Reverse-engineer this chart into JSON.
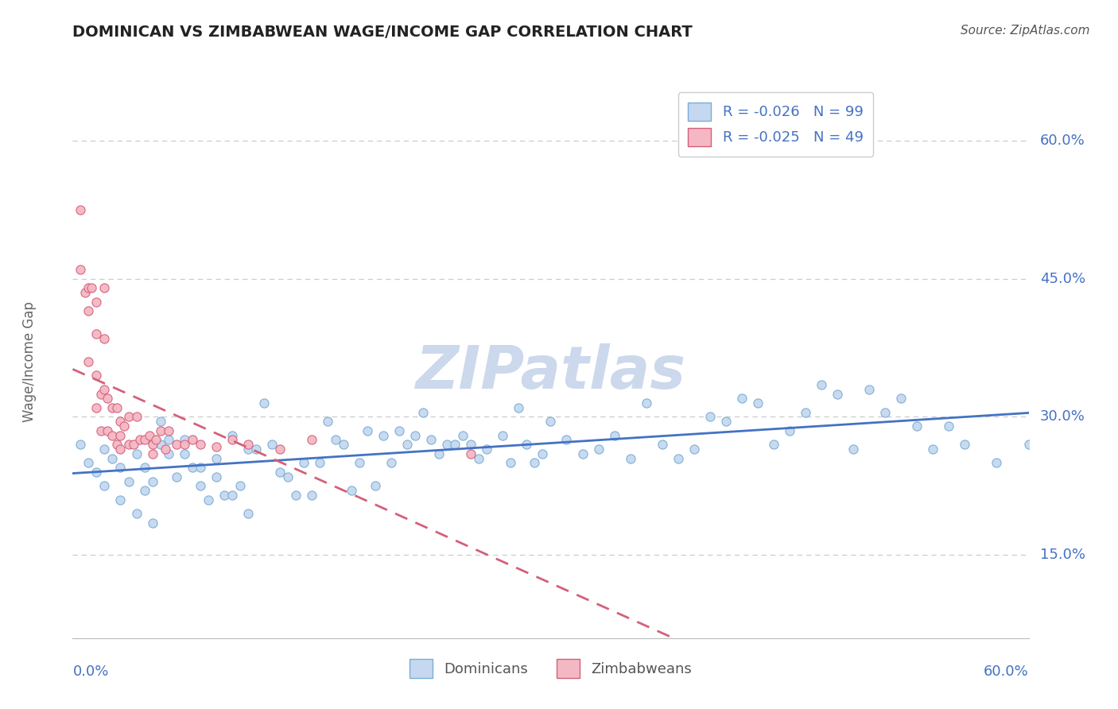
{
  "title": "DOMINICAN VS ZIMBABWEAN WAGE/INCOME GAP CORRELATION CHART",
  "source": "Source: ZipAtlas.com",
  "ylabel": "Wage/Income Gap",
  "yticks": [
    0.15,
    0.3,
    0.45,
    0.6
  ],
  "ytick_labels": [
    "15.0%",
    "30.0%",
    "45.0%",
    "60.0%"
  ],
  "xlim": [
    0.0,
    0.6
  ],
  "ylim": [
    0.06,
    0.66
  ],
  "series": [
    {
      "name": "Dominicans",
      "R": -0.026,
      "N": 99,
      "color": "#c5d8f0",
      "edge_color": "#7aadd4",
      "line_color": "#4472c4",
      "line_style": "solid",
      "x": [
        0.005,
        0.01,
        0.015,
        0.02,
        0.02,
        0.025,
        0.03,
        0.03,
        0.035,
        0.04,
        0.04,
        0.045,
        0.045,
        0.05,
        0.05,
        0.055,
        0.055,
        0.06,
        0.06,
        0.065,
        0.07,
        0.07,
        0.075,
        0.08,
        0.08,
        0.085,
        0.09,
        0.09,
        0.095,
        0.1,
        0.1,
        0.105,
        0.11,
        0.11,
        0.115,
        0.12,
        0.125,
        0.13,
        0.135,
        0.14,
        0.145,
        0.15,
        0.155,
        0.16,
        0.165,
        0.17,
        0.175,
        0.18,
        0.185,
        0.19,
        0.195,
        0.2,
        0.205,
        0.21,
        0.215,
        0.22,
        0.225,
        0.23,
        0.235,
        0.24,
        0.245,
        0.25,
        0.255,
        0.26,
        0.27,
        0.275,
        0.28,
        0.285,
        0.29,
        0.295,
        0.3,
        0.31,
        0.32,
        0.33,
        0.34,
        0.35,
        0.36,
        0.37,
        0.38,
        0.39,
        0.4,
        0.41,
        0.42,
        0.43,
        0.44,
        0.45,
        0.46,
        0.47,
        0.48,
        0.49,
        0.5,
        0.51,
        0.52,
        0.53,
        0.54,
        0.55,
        0.56,
        0.58,
        0.6
      ],
      "y": [
        0.27,
        0.25,
        0.24,
        0.265,
        0.225,
        0.255,
        0.245,
        0.21,
        0.23,
        0.26,
        0.195,
        0.22,
        0.245,
        0.23,
        0.185,
        0.27,
        0.295,
        0.275,
        0.26,
        0.235,
        0.275,
        0.26,
        0.245,
        0.225,
        0.245,
        0.21,
        0.235,
        0.255,
        0.215,
        0.215,
        0.28,
        0.225,
        0.265,
        0.195,
        0.265,
        0.315,
        0.27,
        0.24,
        0.235,
        0.215,
        0.25,
        0.215,
        0.25,
        0.295,
        0.275,
        0.27,
        0.22,
        0.25,
        0.285,
        0.225,
        0.28,
        0.25,
        0.285,
        0.27,
        0.28,
        0.305,
        0.275,
        0.26,
        0.27,
        0.27,
        0.28,
        0.27,
        0.255,
        0.265,
        0.28,
        0.25,
        0.31,
        0.27,
        0.25,
        0.26,
        0.295,
        0.275,
        0.26,
        0.265,
        0.28,
        0.255,
        0.315,
        0.27,
        0.255,
        0.265,
        0.3,
        0.295,
        0.32,
        0.315,
        0.27,
        0.285,
        0.305,
        0.335,
        0.325,
        0.265,
        0.33,
        0.305,
        0.32,
        0.29,
        0.265,
        0.29,
        0.27,
        0.25,
        0.27
      ]
    },
    {
      "name": "Zimbabweans",
      "R": -0.025,
      "N": 49,
      "color": "#f4b8c4",
      "edge_color": "#d4607a",
      "line_color": "#d4607a",
      "line_style": "dashed",
      "x": [
        0.005,
        0.005,
        0.008,
        0.01,
        0.01,
        0.01,
        0.012,
        0.015,
        0.015,
        0.015,
        0.015,
        0.018,
        0.018,
        0.02,
        0.02,
        0.02,
        0.022,
        0.022,
        0.025,
        0.025,
        0.028,
        0.028,
        0.03,
        0.03,
        0.03,
        0.032,
        0.035,
        0.035,
        0.038,
        0.04,
        0.042,
        0.045,
        0.048,
        0.05,
        0.05,
        0.052,
        0.055,
        0.058,
        0.06,
        0.065,
        0.07,
        0.075,
        0.08,
        0.09,
        0.1,
        0.11,
        0.13,
        0.15,
        0.25
      ],
      "y": [
        0.525,
        0.46,
        0.435,
        0.44,
        0.415,
        0.36,
        0.44,
        0.425,
        0.39,
        0.345,
        0.31,
        0.325,
        0.285,
        0.44,
        0.385,
        0.33,
        0.32,
        0.285,
        0.31,
        0.28,
        0.31,
        0.27,
        0.295,
        0.28,
        0.265,
        0.29,
        0.3,
        0.27,
        0.27,
        0.3,
        0.275,
        0.275,
        0.28,
        0.27,
        0.26,
        0.275,
        0.285,
        0.265,
        0.285,
        0.27,
        0.27,
        0.275,
        0.27,
        0.268,
        0.275,
        0.27,
        0.265,
        0.275,
        0.26
      ]
    }
  ],
  "watermark": "ZIPatlas",
  "watermark_color": "#ccd8ec",
  "background_color": "#ffffff",
  "grid_color": "#cccccc",
  "title_color": "#222222",
  "source_color": "#555555",
  "axis_label_color": "#4472c4",
  "legend_color": "#4472c4"
}
